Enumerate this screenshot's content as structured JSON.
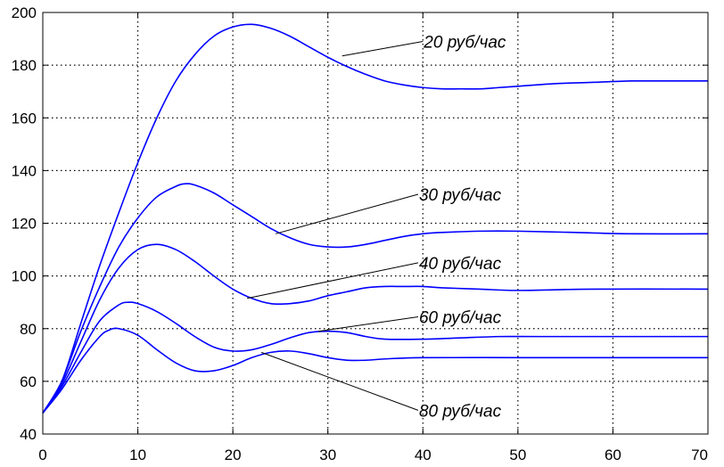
{
  "chart_data": {
    "type": "line",
    "title": "",
    "xlabel": "",
    "ylabel": "",
    "xlim": [
      0,
      70
    ],
    "ylim": [
      40,
      200
    ],
    "x_ticks": [
      "0",
      "10",
      "20",
      "30",
      "40",
      "50",
      "60",
      "70"
    ],
    "y_ticks": [
      "40",
      "60",
      "80",
      "100",
      "120",
      "140",
      "160",
      "180",
      "200"
    ],
    "grid": true,
    "line_color": "#0000ff",
    "series": [
      {
        "name": "20 руб/час",
        "points": [
          [
            0,
            48
          ],
          [
            2,
            60
          ],
          [
            4,
            82
          ],
          [
            6,
            104
          ],
          [
            8,
            124
          ],
          [
            10,
            143
          ],
          [
            12,
            160
          ],
          [
            14,
            174
          ],
          [
            16,
            184
          ],
          [
            18,
            191
          ],
          [
            20,
            194.5
          ],
          [
            22,
            195.5
          ],
          [
            24,
            194
          ],
          [
            26,
            191
          ],
          [
            28,
            187
          ],
          [
            30,
            183
          ],
          [
            32,
            179.5
          ],
          [
            34,
            176.5
          ],
          [
            36,
            174
          ],
          [
            38,
            172.5
          ],
          [
            40,
            171.5
          ],
          [
            42,
            171
          ],
          [
            44,
            171
          ],
          [
            46,
            171
          ],
          [
            48,
            171.5
          ],
          [
            50,
            172
          ],
          [
            54,
            173
          ],
          [
            58,
            173.5
          ],
          [
            62,
            174
          ],
          [
            66,
            174
          ],
          [
            70,
            174
          ]
        ]
      },
      {
        "name": "30 руб/час",
        "points": [
          [
            0,
            48
          ],
          [
            2,
            60
          ],
          [
            4,
            79
          ],
          [
            6,
            96
          ],
          [
            8,
            111
          ],
          [
            10,
            122
          ],
          [
            12,
            130
          ],
          [
            14,
            134
          ],
          [
            15,
            135
          ],
          [
            16,
            134.5
          ],
          [
            18,
            131.5
          ],
          [
            20,
            127
          ],
          [
            22,
            122.5
          ],
          [
            24,
            118
          ],
          [
            26,
            114.5
          ],
          [
            28,
            112
          ],
          [
            30,
            111
          ],
          [
            32,
            111
          ],
          [
            34,
            112
          ],
          [
            36,
            113.5
          ],
          [
            38,
            115
          ],
          [
            40,
            116
          ],
          [
            42,
            116.5
          ],
          [
            46,
            117
          ],
          [
            50,
            117
          ],
          [
            56,
            116.5
          ],
          [
            62,
            116
          ],
          [
            70,
            116
          ]
        ]
      },
      {
        "name": "40 руб/час",
        "points": [
          [
            0,
            48
          ],
          [
            2,
            59
          ],
          [
            4,
            75
          ],
          [
            6,
            91
          ],
          [
            8,
            103
          ],
          [
            10,
            110
          ],
          [
            12,
            112
          ],
          [
            14,
            110
          ],
          [
            16,
            105.5
          ],
          [
            18,
            100
          ],
          [
            20,
            95
          ],
          [
            22,
            91.5
          ],
          [
            24,
            89.5
          ],
          [
            26,
            89.5
          ],
          [
            28,
            90.5
          ],
          [
            30,
            92.5
          ],
          [
            32,
            94
          ],
          [
            34,
            95.5
          ],
          [
            36,
            96
          ],
          [
            38,
            96
          ],
          [
            40,
            96
          ],
          [
            42,
            95.5
          ],
          [
            46,
            95
          ],
          [
            50,
            94.5
          ],
          [
            58,
            95
          ],
          [
            70,
            95
          ]
        ]
      },
      {
        "name": "60 руб/час",
        "points": [
          [
            0,
            48
          ],
          [
            2,
            58
          ],
          [
            4,
            71
          ],
          [
            6,
            83
          ],
          [
            8,
            89
          ],
          [
            9,
            90
          ],
          [
            10,
            89.5
          ],
          [
            12,
            86.5
          ],
          [
            14,
            82
          ],
          [
            16,
            77
          ],
          [
            18,
            73
          ],
          [
            20,
            71.5
          ],
          [
            22,
            72
          ],
          [
            24,
            74
          ],
          [
            26,
            76.5
          ],
          [
            28,
            78.5
          ],
          [
            30,
            79
          ],
          [
            32,
            78.5
          ],
          [
            34,
            77
          ],
          [
            36,
            76
          ],
          [
            40,
            76
          ],
          [
            44,
            76.5
          ],
          [
            48,
            77
          ],
          [
            52,
            77
          ],
          [
            60,
            77
          ],
          [
            70,
            77
          ]
        ]
      },
      {
        "name": "80 руб/час",
        "points": [
          [
            0,
            48
          ],
          [
            2,
            57
          ],
          [
            4,
            68
          ],
          [
            6,
            77
          ],
          [
            7,
            79.5
          ],
          [
            8,
            80
          ],
          [
            10,
            77.5
          ],
          [
            12,
            72
          ],
          [
            14,
            67
          ],
          [
            16,
            64
          ],
          [
            18,
            64
          ],
          [
            20,
            66
          ],
          [
            22,
            69
          ],
          [
            24,
            71
          ],
          [
            26,
            71.5
          ],
          [
            28,
            70.5
          ],
          [
            30,
            69
          ],
          [
            32,
            68
          ],
          [
            34,
            68
          ],
          [
            36,
            68.5
          ],
          [
            40,
            69
          ],
          [
            50,
            69
          ],
          [
            60,
            69
          ],
          [
            70,
            69
          ]
        ]
      }
    ],
    "annotations": [
      {
        "text": "20 руб/час",
        "from": [
          31.5,
          183.5
        ],
        "to": [
          40,
          189
        ]
      },
      {
        "text": "30 руб/час",
        "from": [
          24.5,
          116
        ],
        "to": [
          39.5,
          131
        ]
      },
      {
        "text": "40 руб/час",
        "from": [
          21.5,
          91.5
        ],
        "to": [
          39.5,
          105
        ]
      },
      {
        "text": "60 руб/час",
        "from": [
          29,
          79
        ],
        "to": [
          39.5,
          84.5
        ]
      },
      {
        "text": "80 руб/час",
        "from": [
          23,
          71
        ],
        "to": [
          39.5,
          49
        ]
      }
    ]
  }
}
